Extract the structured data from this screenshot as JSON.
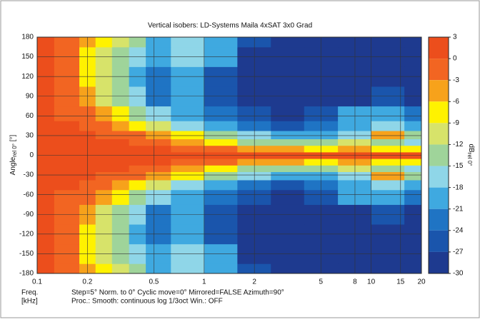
{
  "chart_data": {
    "type": "heatmap",
    "title": "Vertical isobers: LD-Systems  Maila  4xSAT 3x0 Grad",
    "x_label": {
      "main": "Freq.",
      "unit": "[kHz]"
    },
    "y_label": {
      "main": "Angle",
      "sub": "rel 0°",
      "unit": " [°]"
    },
    "colorbar_label": {
      "main": "dB",
      "sub": "rel 0°"
    },
    "notes": [
      "Step=5°   Norm. to 0°   Cyclic move=0°   Mirrored=FALSE   Azimuth=90°",
      "Proc.: Smooth: continuous log 1/3oct     Win.: OFF"
    ],
    "x_log": true,
    "xlim": [
      0.1,
      20
    ],
    "xticks": [
      0.1,
      0.2,
      0.5,
      1,
      2,
      5,
      8,
      10,
      15,
      20
    ],
    "ylim": [
      -180,
      180
    ],
    "yticks": [
      -180,
      -150,
      -120,
      -90,
      -60,
      -30,
      0,
      30,
      60,
      90,
      120,
      150,
      180
    ],
    "grid": true,
    "levels": [
      3,
      0,
      -3,
      -6,
      -9,
      -12,
      -15,
      -18,
      -21,
      -24,
      -27,
      -30
    ],
    "colors": [
      "#ec4e1c",
      "#f26522",
      "#f7a21b",
      "#fff200",
      "#d7e36a",
      "#9fd49a",
      "#8fd6e8",
      "#3fa9e0",
      "#1f74c4",
      "#1a55ac",
      "#1e3a8f"
    ],
    "x": [
      0.1,
      0.16,
      0.2,
      0.25,
      0.315,
      0.4,
      0.5,
      0.8,
      1.25,
      2,
      3.15,
      5,
      8,
      12.5,
      20
    ],
    "y": [
      -180,
      -150,
      -120,
      -90,
      -60,
      -45,
      -30,
      -20,
      -10,
      0,
      10,
      20,
      30,
      45,
      60,
      90,
      120,
      150,
      180
    ],
    "z": [
      [
        1,
        -2,
        -5,
        -8,
        -11,
        -14,
        -18,
        -16,
        -18,
        -24,
        -28,
        -29,
        -29,
        -29,
        -29
      ],
      [
        1,
        -2,
        -6,
        -9,
        -12,
        -16,
        -20,
        -17,
        -20,
        -27,
        -29,
        -29,
        -29,
        -29,
        -29
      ],
      [
        1,
        -2,
        -6,
        -10,
        -14,
        -19,
        -22,
        -19,
        -26,
        -29,
        -29,
        -29,
        -29,
        -29,
        -29
      ],
      [
        1,
        -1,
        -5,
        -9,
        -13,
        -17,
        -22,
        -20,
        -25,
        -28,
        -29,
        -29,
        -28,
        -25,
        -28
      ],
      [
        1,
        0,
        -2,
        -5,
        -8,
        -12,
        -16,
        -19,
        -22,
        -26,
        -28,
        -25,
        -20,
        -18,
        -22
      ],
      [
        1,
        1,
        0,
        -2,
        -4,
        -6,
        -10,
        -15,
        -18,
        -22,
        -25,
        -22,
        -18,
        -15,
        -20
      ],
      [
        1,
        1,
        1,
        0,
        -1,
        -2,
        -3,
        -8,
        -13,
        -17,
        -18,
        -19,
        -16,
        -4,
        -12
      ],
      [
        1,
        1,
        1,
        1,
        1,
        0,
        -1,
        -4,
        -8,
        -12,
        -13,
        -14,
        -10,
        -12,
        -15
      ],
      [
        1,
        1,
        1,
        1,
        1,
        1,
        1,
        0,
        -2,
        -4,
        -5,
        -6,
        -3,
        -6,
        -8
      ],
      [
        1,
        1,
        1,
        1,
        1,
        1,
        1,
        1,
        1,
        1,
        1,
        1,
        2,
        1,
        1
      ],
      [
        1,
        1,
        1,
        1,
        1,
        1,
        1,
        0,
        -2,
        -4,
        -5,
        -6,
        -3,
        -6,
        -8
      ],
      [
        1,
        1,
        1,
        1,
        1,
        0,
        -1,
        -4,
        -8,
        -12,
        -13,
        -14,
        -10,
        -12,
        -15
      ],
      [
        1,
        1,
        1,
        0,
        -1,
        -2,
        -3,
        -8,
        -13,
        -17,
        -18,
        -19,
        -16,
        -4,
        -12
      ],
      [
        1,
        1,
        0,
        -2,
        -4,
        -6,
        -10,
        -15,
        -18,
        -22,
        -25,
        -22,
        -18,
        -15,
        -20
      ],
      [
        1,
        0,
        -2,
        -5,
        -8,
        -12,
        -16,
        -19,
        -22,
        -26,
        -28,
        -25,
        -20,
        -18,
        -22
      ],
      [
        1,
        -1,
        -5,
        -9,
        -13,
        -17,
        -22,
        -20,
        -25,
        -28,
        -29,
        -29,
        -28,
        -25,
        -28
      ],
      [
        1,
        -2,
        -6,
        -10,
        -14,
        -19,
        -22,
        -19,
        -26,
        -29,
        -29,
        -29,
        -29,
        -29,
        -29
      ],
      [
        1,
        -2,
        -6,
        -9,
        -12,
        -16,
        -20,
        -17,
        -20,
        -27,
        -29,
        -29,
        -29,
        -29,
        -29
      ],
      [
        1,
        -2,
        -5,
        -8,
        -11,
        -14,
        -18,
        -16,
        -18,
        -24,
        -28,
        -29,
        -29,
        -29,
        -29
      ]
    ]
  }
}
